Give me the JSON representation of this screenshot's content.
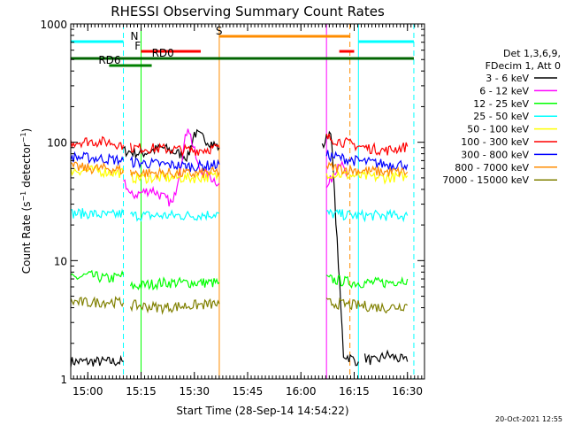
{
  "chart_data": {
    "type": "line",
    "title": "RHESSI Observing Summary Count Rates",
    "xlabel": "Start Time (28-Sep-14 14:54:22)",
    "ylabel": "Count Rate (s⁻¹ detector⁻¹)",
    "ylabel_parts": [
      "Count Rate (s",
      "−1",
      " detector",
      "−1",
      ")"
    ],
    "yscale": "log",
    "ylim": [
      1,
      1000
    ],
    "xlim_minutes": [
      14.92,
      16.58
    ],
    "x_ticks": [
      "15:00",
      "15:15",
      "15:30",
      "15:45",
      "16:00",
      "16:15",
      "16:30"
    ],
    "y_ticks": [
      "1",
      "10",
      "100",
      "1000"
    ],
    "timestamp": "20-Oct-2021 12:55",
    "legend_header": [
      "Det 1,3,6,9,",
      "FDecim 1, Att 0"
    ],
    "series": [
      {
        "name": "3 - 6 keV",
        "color": "#000000",
        "segments": [
          {
            "x": [
              14.92,
              15.0,
              15.1,
              15.167
            ],
            "y": [
              1.4,
              1.4,
              1.4,
              1.4
            ]
          },
          {
            "x": [
              15.167,
              15.25,
              15.35,
              15.47,
              15.5,
              15.617
            ],
            "y": [
              85,
              80,
              90,
              75,
              120,
              90
            ]
          },
          {
            "x": [
              16.1,
              16.14,
              16.2,
              16.27
            ],
            "y": [
              90,
              130,
              1.6,
              1.4
            ]
          },
          {
            "x": [
              16.3,
              16.35,
              16.4,
              16.45,
              16.5
            ],
            "y": [
              1.5,
              1.4,
              1.6,
              1.5,
              1.4
            ]
          }
        ]
      },
      {
        "name": "6 - 12 keV",
        "color": "#ff00ff",
        "segments": [
          {
            "x": [
              15.167,
              15.2,
              15.3,
              15.4,
              15.47,
              15.52,
              15.617
            ],
            "y": [
              50,
              35,
              40,
              30,
              140,
              60,
              45
            ]
          },
          {
            "x": [
              16.12,
              16.18,
              16.22
            ],
            "y": [
              40,
              70,
              50
            ]
          }
        ]
      },
      {
        "name": "12 - 25 keV",
        "color": "#00ff00",
        "segments": [
          {
            "x": [
              14.92,
              15.0,
              15.1,
              15.167
            ],
            "y": [
              7,
              7.5,
              7,
              7.5
            ]
          },
          {
            "x": [
              15.2,
              15.35,
              15.5,
              15.617
            ],
            "y": [
              6,
              6.5,
              6.5,
              6.5
            ]
          },
          {
            "x": [
              16.12,
              16.25,
              16.4,
              16.5
            ],
            "y": [
              7,
              6.5,
              6.5,
              7
            ]
          }
        ]
      },
      {
        "name": "25 - 50 keV",
        "color": "#00ffff",
        "segments": [
          {
            "x": [
              14.92,
              15.0,
              15.1,
              15.167
            ],
            "y": [
              25,
              25,
              24,
              25
            ]
          },
          {
            "x": [
              15.2,
              15.35,
              15.5,
              15.617
            ],
            "y": [
              24,
              24,
              24,
              25
            ]
          },
          {
            "x": [
              16.12,
              16.25,
              16.4,
              16.5
            ],
            "y": [
              25,
              24,
              24,
              24
            ]
          }
        ]
      },
      {
        "name": "50 - 100 keV",
        "color": "#ffff00",
        "segments": [
          {
            "x": [
              14.92,
              15.0,
              15.1,
              15.167
            ],
            "y": [
              58,
              58,
              56,
              55
            ]
          },
          {
            "x": [
              15.2,
              15.35,
              15.5,
              15.617
            ],
            "y": [
              50,
              50,
              50,
              52
            ]
          },
          {
            "x": [
              16.12,
              16.25,
              16.4,
              16.5
            ],
            "y": [
              55,
              52,
              50,
              52
            ]
          }
        ]
      },
      {
        "name": "100 - 300 keV",
        "color": "#ff0000",
        "segments": [
          {
            "x": [
              14.92,
              15.0,
              15.1,
              15.167
            ],
            "y": [
              100,
              102,
              100,
              95
            ]
          },
          {
            "x": [
              15.2,
              15.35,
              15.5,
              15.617
            ],
            "y": [
              90,
              88,
              85,
              90
            ]
          },
          {
            "x": [
              16.12,
              16.2,
              16.3,
              16.4,
              16.5
            ],
            "y": [
              110,
              100,
              90,
              85,
              92
            ]
          }
        ]
      },
      {
        "name": "300 - 800 keV",
        "color": "#0000ff",
        "segments": [
          {
            "x": [
              14.92,
              15.0,
              15.1,
              15.167
            ],
            "y": [
              75,
              74,
              72,
              70
            ]
          },
          {
            "x": [
              15.2,
              15.35,
              15.5,
              15.617
            ],
            "y": [
              68,
              65,
              62,
              65
            ]
          },
          {
            "x": [
              16.12,
              16.25,
              16.4,
              16.5
            ],
            "y": [
              78,
              70,
              65,
              65
            ]
          }
        ]
      },
      {
        "name": "800 - 7000 keV",
        "color": "#ff8c00",
        "segments": [
          {
            "x": [
              14.92,
              15.0,
              15.1,
              15.167
            ],
            "y": [
              62,
              60,
              60,
              58
            ]
          },
          {
            "x": [
              15.2,
              15.35,
              15.5,
              15.617
            ],
            "y": [
              55,
              55,
              54,
              56
            ]
          },
          {
            "x": [
              16.12,
              16.25,
              16.4,
              16.5
            ],
            "y": [
              62,
              58,
              56,
              56
            ]
          }
        ]
      },
      {
        "name": "7000 - 15000 keV",
        "color": "#808000",
        "segments": [
          {
            "x": [
              14.92,
              15.0,
              15.1,
              15.167
            ],
            "y": [
              4.5,
              4.4,
              4.5,
              4.4
            ]
          },
          {
            "x": [
              15.2,
              15.35,
              15.5,
              15.617
            ],
            "y": [
              4.2,
              4.0,
              4.2,
              4.3
            ]
          },
          {
            "x": [
              16.12,
              16.25,
              16.4,
              16.5
            ],
            "y": [
              4.4,
              4.2,
              4.0,
              4.2
            ]
          }
        ]
      }
    ],
    "flags": [
      {
        "label": "N",
        "color": "#00ffff",
        "ranges": [
          [
            14.92,
            15.167
          ],
          [
            16.27,
            16.53
          ]
        ],
        "level": 47,
        "label_at": 15.2
      },
      {
        "label": "S",
        "color": "#ff8c00",
        "ranges": [
          [
            15.617,
            16.23
          ]
        ],
        "level": 41,
        "label_at": 15.6
      },
      {
        "label": "F",
        "color": "#ff0000",
        "ranges": [
          [
            15.25,
            15.53
          ],
          [
            16.18,
            16.25
          ]
        ],
        "level": 58,
        "label_at": 15.22
      },
      {
        "label": "RD0",
        "color": "#006400",
        "ranges": [
          [
            14.92,
            16.53
          ]
        ],
        "level": 66,
        "label_at": 15.3
      },
      {
        "label": "RD6",
        "color": "#008000",
        "ranges": [
          [
            15.1,
            15.3
          ]
        ],
        "level": 74,
        "label_at": 15.05
      }
    ],
    "vlines": [
      {
        "x": 14.92,
        "color": "#00ffff",
        "style": "solid"
      },
      {
        "x": 15.167,
        "color": "#00ffff",
        "style": "dashed"
      },
      {
        "x": 15.617,
        "color": "#ff8c00",
        "style": "solid"
      },
      {
        "x": 16.23,
        "color": "#ff8c00",
        "style": "dashed"
      },
      {
        "x": 16.27,
        "color": "#00ffff",
        "style": "solid"
      },
      {
        "x": 16.53,
        "color": "#00ffff",
        "style": "dashed"
      },
      {
        "x": 15.25,
        "color": "#00ff00",
        "style": "solid"
      },
      {
        "x": 16.12,
        "color": "#ff00ff",
        "style": "solid"
      }
    ]
  }
}
